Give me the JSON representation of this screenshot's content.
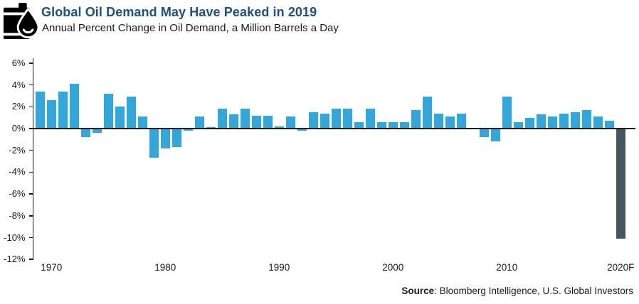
{
  "header": {
    "title": "Global Oil Demand May Have Peaked in 2019",
    "subtitle": "Annual Percent Change in Oil Demand, a Million Barrels a Day"
  },
  "footer": {
    "source_label": "Source",
    "source_rest": ": Bloomberg Intelligence, U.S. Global Investors"
  },
  "colors": {
    "bar": "#33a7da",
    "bar_highlight": "#47555f",
    "title": "#1b4e8a",
    "axis": "#1a1a1a"
  },
  "chart_data": {
    "type": "bar",
    "title": "Global Oil Demand May Have Peaked in 2019",
    "subtitle": "Annual Percent Change in Oil Demand, a Million Barrels a Day",
    "xlabel": "",
    "ylabel": "Annual percent change in oil demand",
    "ylim": [
      -12,
      6
    ],
    "grid": false,
    "legend": false,
    "yticks": [
      {
        "label": "6%",
        "value": 6
      },
      {
        "label": "4%",
        "value": 4
      },
      {
        "label": "2%",
        "value": 2
      },
      {
        "label": "0%",
        "value": 0
      },
      {
        "label": "-2%",
        "value": -2
      },
      {
        "label": "-4%",
        "value": -4
      },
      {
        "label": "-6%",
        "value": -6
      },
      {
        "label": "-8%",
        "value": -8
      },
      {
        "label": "-10%",
        "value": -10
      },
      {
        "label": "-12%",
        "value": -12
      }
    ],
    "categories": [
      "1969",
      "1970",
      "1971",
      "1972",
      "1973",
      "1974",
      "1975",
      "1976",
      "1977",
      "1978",
      "1979",
      "1980",
      "1981",
      "1982",
      "1983",
      "1984",
      "1985",
      "1986",
      "1987",
      "1988",
      "1989",
      "1990",
      "1991",
      "1992",
      "1993",
      "1994",
      "1995",
      "1996",
      "1997",
      "1998",
      "1999",
      "2000",
      "2001",
      "2002",
      "2003",
      "2004",
      "2005",
      "2006",
      "2007",
      "2008",
      "2009",
      "2010",
      "2011",
      "2012",
      "2013",
      "2014",
      "2015",
      "2016",
      "2017",
      "2018",
      "2019",
      "2020F"
    ],
    "values": [
      3.4,
      2.6,
      3.4,
      4.1,
      -0.8,
      -0.4,
      3.2,
      2.0,
      2.9,
      1.1,
      -2.7,
      -1.8,
      -1.7,
      -0.2,
      1.1,
      0.1,
      1.8,
      1.3,
      1.8,
      1.2,
      1.2,
      0.2,
      1.1,
      -0.2,
      1.5,
      1.4,
      1.8,
      1.8,
      0.6,
      1.8,
      0.6,
      0.6,
      0.6,
      1.7,
      2.9,
      1.4,
      1.1,
      1.4,
      0.0,
      -0.8,
      -1.2,
      2.9,
      0.6,
      1.0,
      1.3,
      1.1,
      1.4,
      1.5,
      1.7,
      1.1,
      0.7,
      -10.1
    ],
    "highlight_index": 51,
    "xtick_labels": [
      {
        "label": "1970",
        "index": 1
      },
      {
        "label": "1980",
        "index": 11
      },
      {
        "label": "1990",
        "index": 21
      },
      {
        "label": "2000",
        "index": 31
      },
      {
        "label": "2010",
        "index": 41
      },
      {
        "label": "2020F",
        "index": 51
      }
    ]
  }
}
